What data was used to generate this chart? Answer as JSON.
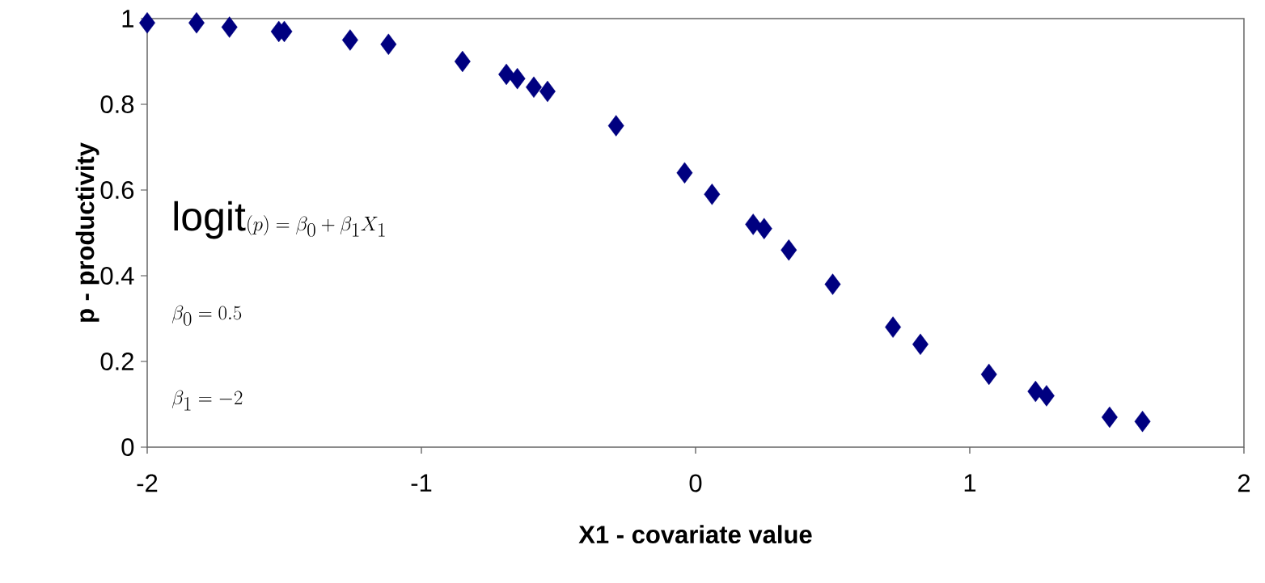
{
  "chart_data": {
    "type": "scatter",
    "x": [
      -2.0,
      -1.82,
      -1.7,
      -1.52,
      -1.5,
      -1.26,
      -1.12,
      -0.85,
      -0.69,
      -0.65,
      -0.59,
      -0.54,
      -0.29,
      -0.04,
      0.06,
      0.21,
      0.25,
      0.34,
      0.5,
      0.72,
      0.82,
      1.07,
      1.24,
      1.28,
      1.51,
      1.63
    ],
    "values": [
      0.99,
      0.99,
      0.98,
      0.97,
      0.97,
      0.95,
      0.94,
      0.9,
      0.87,
      0.86,
      0.84,
      0.83,
      0.75,
      0.64,
      0.59,
      0.52,
      0.51,
      0.46,
      0.38,
      0.28,
      0.24,
      0.17,
      0.13,
      0.12,
      0.07,
      0.06
    ],
    "color": "#000080",
    "marker": "diamond",
    "xlim": [
      -2,
      2
    ],
    "ylim": [
      0,
      1
    ],
    "xticks": [
      -2,
      -1,
      0,
      1,
      2
    ],
    "yticks": [
      0,
      0.2,
      0.4,
      0.6,
      0.8,
      1
    ],
    "xlabel": "X1 - covariate value",
    "ylabel": "p - productivity",
    "annotations": [
      "\\mathrm{logit}(p) = \\beta_0 + \\beta_1 X_1",
      "\\beta_0 = 0.5",
      "\\beta_1 = -2"
    ]
  }
}
